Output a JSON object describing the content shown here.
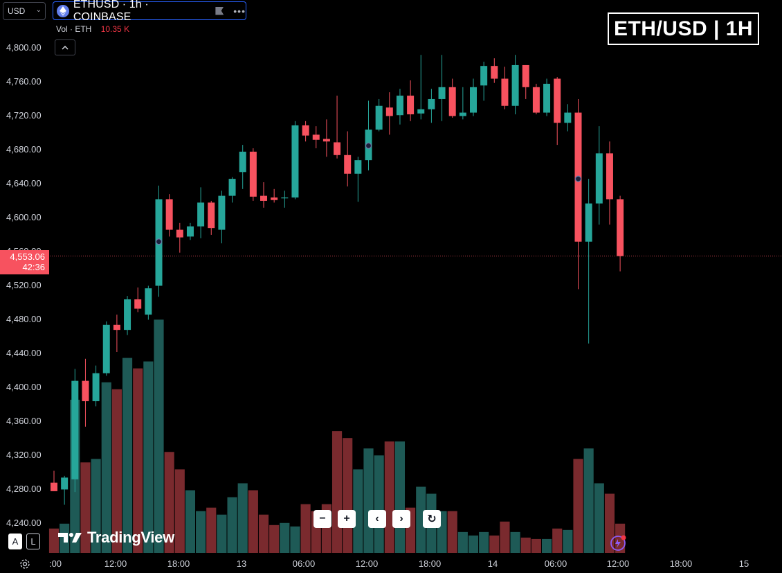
{
  "header": {
    "currency": "USD",
    "symbol_text": "ETHUSD · 1h · COINBASE",
    "more_icon": "more-dots-icon",
    "vol_label": "Vol · ETH",
    "vol_value": "10.35 K",
    "title_badge": "ETH/USD | 1H"
  },
  "price_axis": {
    "labels": [
      "4,800.00",
      "4,760.00",
      "4,720.00",
      "4,680.00",
      "4,640.00",
      "4,600.00",
      "4,560.00",
      "4,520.00",
      "4,480.00",
      "4,440.00",
      "4,400.00",
      "4,360.00",
      "4,320.00",
      "4,280.00",
      "4,240.00"
    ],
    "current_price": "4,553.06",
    "countdown": "42:36"
  },
  "time_axis": {
    "labels": [
      ":00",
      "12:00",
      "18:00",
      "13",
      "06:00",
      "12:00",
      "18:00",
      "14",
      "06:00",
      "12:00",
      "18:00",
      "15"
    ]
  },
  "nav_buttons": {
    "zoom_out": "−",
    "zoom_in": "+",
    "scroll_left": "‹",
    "scroll_right": "›",
    "reset": "↻"
  },
  "footer": {
    "auto_label": "A",
    "log_label": "L",
    "logo_text": "TradingView"
  },
  "colors": {
    "up": "#26a69a",
    "down": "#f7525f",
    "vol_up": "#1e5a56",
    "vol_down": "#7a2a2e",
    "accent": "#2962ff"
  },
  "chart_data": {
    "type": "candlestick",
    "symbol": "ETHUSD",
    "interval": "1h",
    "exchange": "COINBASE",
    "ylim": [
      4220,
      4830
    ],
    "candles": [
      {
        "o": 4286,
        "h": 4300,
        "l": 4276,
        "c": 4276,
        "v": 35
      },
      {
        "o": 4278,
        "h": 4294,
        "l": 4260,
        "c": 4292,
        "v": 42
      },
      {
        "o": 4290,
        "h": 4420,
        "l": 4275,
        "c": 4406,
        "v": 220
      },
      {
        "o": 4406,
        "h": 4432,
        "l": 4352,
        "c": 4382,
        "v": 130
      },
      {
        "o": 4382,
        "h": 4424,
        "l": 4376,
        "c": 4415,
        "v": 135
      },
      {
        "o": 4415,
        "h": 4476,
        "l": 4412,
        "c": 4472,
        "v": 245
      },
      {
        "o": 4472,
        "h": 4484,
        "l": 4440,
        "c": 4466,
        "v": 235
      },
      {
        "o": 4466,
        "h": 4506,
        "l": 4460,
        "c": 4502,
        "v": 280
      },
      {
        "o": 4502,
        "h": 4516,
        "l": 4487,
        "c": 4491,
        "v": 265
      },
      {
        "o": 4484,
        "h": 4518,
        "l": 4478,
        "c": 4515,
        "v": 275
      },
      {
        "o": 4518,
        "h": 4636,
        "l": 4505,
        "c": 4620,
        "v": 335
      },
      {
        "o": 4620,
        "h": 4626,
        "l": 4576,
        "c": 4584,
        "v": 145
      },
      {
        "o": 4584,
        "h": 4592,
        "l": 4557,
        "c": 4575,
        "v": 120
      },
      {
        "o": 4576,
        "h": 4592,
        "l": 4572,
        "c": 4588,
        "v": 90
      },
      {
        "o": 4588,
        "h": 4634,
        "l": 4574,
        "c": 4616,
        "v": 60
      },
      {
        "o": 4616,
        "h": 4618,
        "l": 4578,
        "c": 4586,
        "v": 65
      },
      {
        "o": 4584,
        "h": 4630,
        "l": 4568,
        "c": 4624,
        "v": 55
      },
      {
        "o": 4624,
        "h": 4646,
        "l": 4616,
        "c": 4644,
        "v": 80
      },
      {
        "o": 4652,
        "h": 4684,
        "l": 4632,
        "c": 4676,
        "v": 100
      },
      {
        "o": 4676,
        "h": 4680,
        "l": 4618,
        "c": 4623,
        "v": 90
      },
      {
        "o": 4624,
        "h": 4640,
        "l": 4610,
        "c": 4618,
        "v": 55
      },
      {
        "o": 4622,
        "h": 4632,
        "l": 4616,
        "c": 4619,
        "v": 40
      },
      {
        "o": 4621,
        "h": 4630,
        "l": 4610,
        "c": 4622,
        "v": 43
      },
      {
        "o": 4622,
        "h": 4712,
        "l": 4620,
        "c": 4707,
        "v": 38
      },
      {
        "o": 4707,
        "h": 4712,
        "l": 4688,
        "c": 4695,
        "v": 70
      },
      {
        "o": 4696,
        "h": 4706,
        "l": 4680,
        "c": 4690,
        "v": 60
      },
      {
        "o": 4691,
        "h": 4714,
        "l": 4670,
        "c": 4688,
        "v": 70
      },
      {
        "o": 4687,
        "h": 4742,
        "l": 4668,
        "c": 4672,
        "v": 175
      },
      {
        "o": 4672,
        "h": 4700,
        "l": 4635,
        "c": 4650,
        "v": 165
      },
      {
        "o": 4650,
        "h": 4670,
        "l": 4617,
        "c": 4666,
        "v": 120
      },
      {
        "o": 4666,
        "h": 4736,
        "l": 4654,
        "c": 4702,
        "v": 150
      },
      {
        "o": 4702,
        "h": 4738,
        "l": 4700,
        "c": 4730,
        "v": 140
      },
      {
        "o": 4728,
        "h": 4746,
        "l": 4696,
        "c": 4718,
        "v": 160
      },
      {
        "o": 4719,
        "h": 4750,
        "l": 4708,
        "c": 4742,
        "v": 160
      },
      {
        "o": 4742,
        "h": 4760,
        "l": 4712,
        "c": 4720,
        "v": 65
      },
      {
        "o": 4721,
        "h": 4790,
        "l": 4714,
        "c": 4726,
        "v": 95
      },
      {
        "o": 4726,
        "h": 4750,
        "l": 4710,
        "c": 4738,
        "v": 85
      },
      {
        "o": 4738,
        "h": 4790,
        "l": 4712,
        "c": 4752,
        "v": 60
      },
      {
        "o": 4752,
        "h": 4762,
        "l": 4716,
        "c": 4718,
        "v": 60
      },
      {
        "o": 4718,
        "h": 4752,
        "l": 4714,
        "c": 4722,
        "v": 30
      },
      {
        "o": 4722,
        "h": 4762,
        "l": 4718,
        "c": 4752,
        "v": 25
      },
      {
        "o": 4754,
        "h": 4782,
        "l": 4736,
        "c": 4777,
        "v": 30
      },
      {
        "o": 4777,
        "h": 4786,
        "l": 4757,
        "c": 4762,
        "v": 25
      },
      {
        "o": 4762,
        "h": 4776,
        "l": 4726,
        "c": 4730,
        "v": 45
      },
      {
        "o": 4730,
        "h": 4790,
        "l": 4720,
        "c": 4778,
        "v": 30
      },
      {
        "o": 4778,
        "h": 4778,
        "l": 4738,
        "c": 4752,
        "v": 22
      },
      {
        "o": 4752,
        "h": 4756,
        "l": 4720,
        "c": 4722,
        "v": 20
      },
      {
        "o": 4722,
        "h": 4762,
        "l": 4718,
        "c": 4756,
        "v": 20
      },
      {
        "o": 4762,
        "h": 4764,
        "l": 4684,
        "c": 4710,
        "v": 35
      },
      {
        "o": 4710,
        "h": 4732,
        "l": 4700,
        "c": 4722,
        "v": 33
      },
      {
        "o": 4722,
        "h": 4738,
        "l": 4514,
        "c": 4570,
        "v": 135
      },
      {
        "o": 4570,
        "h": 4644,
        "l": 4450,
        "c": 4615,
        "v": 150
      },
      {
        "o": 4615,
        "h": 4706,
        "l": 4590,
        "c": 4674,
        "v": 100
      },
      {
        "o": 4674,
        "h": 4688,
        "l": 4590,
        "c": 4620,
        "v": 85
      },
      {
        "o": 4620,
        "h": 4624,
        "l": 4535,
        "c": 4553,
        "v": 42
      }
    ]
  }
}
